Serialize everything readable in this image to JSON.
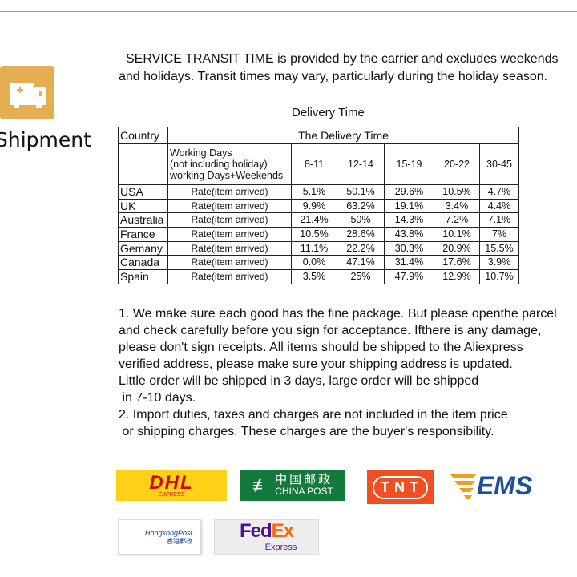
{
  "sidebar": {
    "section_label": "Shipment",
    "icon": "truck-icon",
    "icon_color": "#e6ae52"
  },
  "intro": [
    "SERVICE TRANSIT TIME is provided by the carrier and excludes weekends",
    "and holidays. Transit times may vary, particularly during the holiday season."
  ],
  "table": {
    "caption": "Delivery Time",
    "country_header": "Country",
    "group_header": "The Delivery Time",
    "row_header": "Working Days\n(not including holiday)\nworking Days+Weekends",
    "columns": [
      "8-11",
      "12-14",
      "15-19",
      "20-22",
      "30-45"
    ],
    "rows": [
      {
        "country": "USA",
        "label": "Rate(item arrived)",
        "values": [
          "5.1%",
          "50.1%",
          "29.6%",
          "10.5%",
          "4.7%"
        ]
      },
      {
        "country": "UK",
        "label": "Rate(item arrived)",
        "values": [
          "9.9%",
          "63.2%",
          "19.1%",
          "3.4%",
          "4.4%"
        ]
      },
      {
        "country": "Australia",
        "label": "Rate(item arrived)",
        "values": [
          "21.4%",
          "50%",
          "14.3%",
          "7.2%",
          "7.1%"
        ]
      },
      {
        "country": "France",
        "label": "Rate(item arrived)",
        "values": [
          "10.5%",
          "28.6%",
          "43.8%",
          "10.1%",
          "7%"
        ]
      },
      {
        "country": "Gemany",
        "label": "Rate(item arrived)",
        "values": [
          "11.1%",
          "22.2%",
          "30.3%",
          "20.9%",
          "15.5%"
        ]
      },
      {
        "country": "Canada",
        "label": "Rate(item arrived)",
        "values": [
          "0.0%",
          "47.1%",
          "31.4%",
          "17.6%",
          "3.9%"
        ]
      },
      {
        "country": "Spain",
        "label": "Rate(item arrived)",
        "values": [
          "3.5%",
          "25%",
          "47.9%",
          "12.9%",
          "10.7%"
        ]
      }
    ]
  },
  "notes": [
    "1. We make sure each good has the fine package. But please openthe parcel",
    "and check carefully before you sign for acceptance. Ifthere is any damage,",
    "please don't sign receipts. All items should be shipped to the Aliexpress",
    "verified address, please make sure your shipping address is updated.",
    "Little order will be shipped in 3 days, large order will be shipped",
    " in 7-10 days.",
    "2. Import duties, taxes and charges are not included in the item price",
    " or shipping charges. These charges are the buyer's responsibility."
  ],
  "carriers": {
    "dhl": {
      "name": "DHL",
      "sub": "EXPRESS",
      "bg": "#fcd116",
      "fg": "#d40511"
    },
    "chinapost": {
      "cn": "中国邮政",
      "en": "CHINA POST",
      "bg": "#137a3c"
    },
    "tnt": {
      "name": "TNT",
      "bg": "#f04e23"
    },
    "ems": {
      "name": "EMS",
      "fg": "#1d4fa0",
      "accent": "#f29b1d"
    },
    "hkpost": {
      "name": "HongkongPost",
      "cn": "香港郵政"
    },
    "fedex": {
      "fed": "Fed",
      "ex": "Ex",
      "sub": "Express",
      "purple": "#4d148c",
      "orange": "#ff6600"
    }
  }
}
